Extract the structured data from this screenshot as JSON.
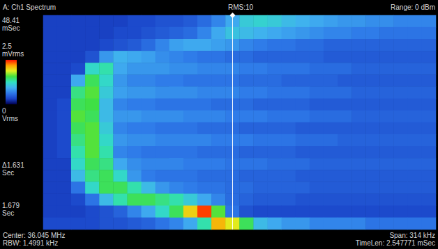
{
  "chart_data": {
    "type": "heatmap",
    "title": "A: Ch1 Spectrum",
    "header_center": "RMS:10",
    "header_right": "Range: 0 dBm",
    "left_labels": [
      "48.41\nmSec",
      "Δ1.631\nSec",
      "1.679\nSec"
    ],
    "footer_left": [
      "Center: 36.045 MHz",
      "RBW: 1.4991 kHz"
    ],
    "footer_right": [
      "Span: 314 kHz",
      "TimeLen: 2.547771 mSec"
    ],
    "tick_labels": false,
    "grid": false,
    "cursor": 13,
    "color_range": [
      0,
      2.5
    ],
    "color_ticks": [
      {
        "value": 2.5,
        "label": "2.5\nmVrms"
      },
      {
        "value": 0,
        "label": "0\nVrms"
      }
    ],
    "cells": [
      [
        0.3,
        0.3,
        0.3,
        0.3,
        0.3,
        0.3,
        0.35,
        0.35,
        0.4,
        0.4,
        0.45,
        0.55,
        0.7,
        0.9,
        1.1,
        1.15,
        1.1,
        1.0,
        0.95,
        0.9,
        0.85,
        0.8,
        0.8,
        0.75,
        0.75,
        0.7,
        0.7,
        0.7
      ],
      [
        0.3,
        0.3,
        0.3,
        0.3,
        0.3,
        0.35,
        0.35,
        0.4,
        0.45,
        0.5,
        0.55,
        0.7,
        0.9,
        1.05,
        1.0,
        0.95,
        0.9,
        0.85,
        0.8,
        0.75,
        0.7,
        0.7,
        0.65,
        0.65,
        0.6,
        0.6,
        0.6,
        0.6
      ],
      [
        0.3,
        0.3,
        0.3,
        0.3,
        0.35,
        0.4,
        0.45,
        0.55,
        0.7,
        0.85,
        0.9,
        0.9,
        0.85,
        0.8,
        0.7,
        0.65,
        0.6,
        0.6,
        0.55,
        0.55,
        0.5,
        0.5,
        0.5,
        0.5,
        0.5,
        0.5,
        0.5,
        0.5
      ],
      [
        0.3,
        0.3,
        0.3,
        0.4,
        0.8,
        0.95,
        0.9,
        0.85,
        0.75,
        0.7,
        0.65,
        0.6,
        0.6,
        0.55,
        0.55,
        0.5,
        0.5,
        0.5,
        0.5,
        0.5,
        0.45,
        0.45,
        0.45,
        0.45,
        0.45,
        0.45,
        0.45,
        0.45
      ],
      [
        0.3,
        0.3,
        0.35,
        1.2,
        1.3,
        0.9,
        0.8,
        0.8,
        0.8,
        0.75,
        0.75,
        0.7,
        0.7,
        0.7,
        0.65,
        0.65,
        0.6,
        0.6,
        0.6,
        0.55,
        0.55,
        0.55,
        0.5,
        0.5,
        0.5,
        0.5,
        0.5,
        0.5
      ],
      [
        0.3,
        0.3,
        0.9,
        1.5,
        1.2,
        0.8,
        0.7,
        0.7,
        0.65,
        0.65,
        0.6,
        0.6,
        0.6,
        0.6,
        0.55,
        0.55,
        0.55,
        0.5,
        0.5,
        0.5,
        0.5,
        0.45,
        0.45,
        0.45,
        0.45,
        0.45,
        0.45,
        0.45
      ],
      [
        0.3,
        0.3,
        1.4,
        1.6,
        1.1,
        0.85,
        0.8,
        0.8,
        0.75,
        0.75,
        0.75,
        0.7,
        0.7,
        0.7,
        0.65,
        0.65,
        0.6,
        0.6,
        0.6,
        0.55,
        0.55,
        0.55,
        0.5,
        0.5,
        0.5,
        0.5,
        0.5,
        0.5
      ],
      [
        0.3,
        0.35,
        1.5,
        1.55,
        1.0,
        0.7,
        0.65,
        0.65,
        0.6,
        0.6,
        0.6,
        0.6,
        0.55,
        0.55,
        0.55,
        0.5,
        0.5,
        0.5,
        0.5,
        0.45,
        0.45,
        0.45,
        0.45,
        0.45,
        0.45,
        0.45,
        0.45,
        0.45
      ],
      [
        0.3,
        0.35,
        1.6,
        1.5,
        1.0,
        0.8,
        0.8,
        0.75,
        0.75,
        0.75,
        0.7,
        0.7,
        0.7,
        0.65,
        0.65,
        0.65,
        0.6,
        0.6,
        0.6,
        0.55,
        0.55,
        0.55,
        0.5,
        0.5,
        0.5,
        0.5,
        0.5,
        0.5
      ],
      [
        0.3,
        0.35,
        1.5,
        1.6,
        1.1,
        0.7,
        0.65,
        0.65,
        0.6,
        0.6,
        0.6,
        0.55,
        0.55,
        0.55,
        0.5,
        0.5,
        0.5,
        0.5,
        0.45,
        0.45,
        0.45,
        0.45,
        0.45,
        0.45,
        0.45,
        0.45,
        0.45,
        0.45
      ],
      [
        0.3,
        0.35,
        1.4,
        1.6,
        1.2,
        0.8,
        0.75,
        0.75,
        0.7,
        0.7,
        0.7,
        0.7,
        0.65,
        0.65,
        0.65,
        0.6,
        0.6,
        0.6,
        0.55,
        0.55,
        0.55,
        0.5,
        0.5,
        0.5,
        0.5,
        0.5,
        0.5,
        0.5
      ],
      [
        0.3,
        0.35,
        1.3,
        1.6,
        1.3,
        0.7,
        0.65,
        0.6,
        0.6,
        0.6,
        0.6,
        0.55,
        0.55,
        0.55,
        0.5,
        0.5,
        0.5,
        0.5,
        0.45,
        0.45,
        0.45,
        0.45,
        0.45,
        0.45,
        0.45,
        0.45,
        0.45,
        0.45
      ],
      [
        0.3,
        0.3,
        1.2,
        1.5,
        1.4,
        0.9,
        0.75,
        0.7,
        0.7,
        0.7,
        0.65,
        0.65,
        0.65,
        0.6,
        0.6,
        0.6,
        0.55,
        0.55,
        0.55,
        0.5,
        0.5,
        0.5,
        0.5,
        0.5,
        0.5,
        0.5,
        0.5,
        0.5
      ],
      [
        0.3,
        0.3,
        1.0,
        1.4,
        1.5,
        1.2,
        0.8,
        0.65,
        0.6,
        0.6,
        0.6,
        0.55,
        0.55,
        0.55,
        0.5,
        0.5,
        0.5,
        0.5,
        0.45,
        0.45,
        0.45,
        0.45,
        0.45,
        0.45,
        0.45,
        0.45,
        0.45,
        0.45
      ],
      [
        0.3,
        0.3,
        0.6,
        1.2,
        1.5,
        1.5,
        1.3,
        1.0,
        0.8,
        0.7,
        0.65,
        0.6,
        0.6,
        0.55,
        0.55,
        0.5,
        0.5,
        0.5,
        0.5,
        0.45,
        0.45,
        0.45,
        0.45,
        0.45,
        0.45,
        0.45,
        0.45,
        0.45
      ],
      [
        0.3,
        0.3,
        0.35,
        0.6,
        1.0,
        1.3,
        1.5,
        1.5,
        1.4,
        1.3,
        1.1,
        0.9,
        0.7,
        0.55,
        0.5,
        0.45,
        0.45,
        0.45,
        0.4,
        0.4,
        0.4,
        0.4,
        0.4,
        0.4,
        0.4,
        0.4,
        0.4,
        0.4
      ],
      [
        0.3,
        0.3,
        0.3,
        0.35,
        0.4,
        0.5,
        0.7,
        0.9,
        1.2,
        1.5,
        2.0,
        2.4,
        1.6,
        0.6,
        0.4,
        0.35,
        0.35,
        0.35,
        0.35,
        0.35,
        0.35,
        0.35,
        0.35,
        0.35,
        0.35,
        0.35,
        0.35,
        0.35
      ],
      [
        0.35,
        0.35,
        0.35,
        0.35,
        0.4,
        0.4,
        0.45,
        0.5,
        0.6,
        0.7,
        0.9,
        1.3,
        2.1,
        1.9,
        1.5,
        1.0,
        0.9,
        0.8,
        0.8,
        0.7,
        0.7,
        0.7,
        0.7,
        0.6,
        0.6,
        0.6,
        0.6,
        0.6
      ]
    ]
  }
}
